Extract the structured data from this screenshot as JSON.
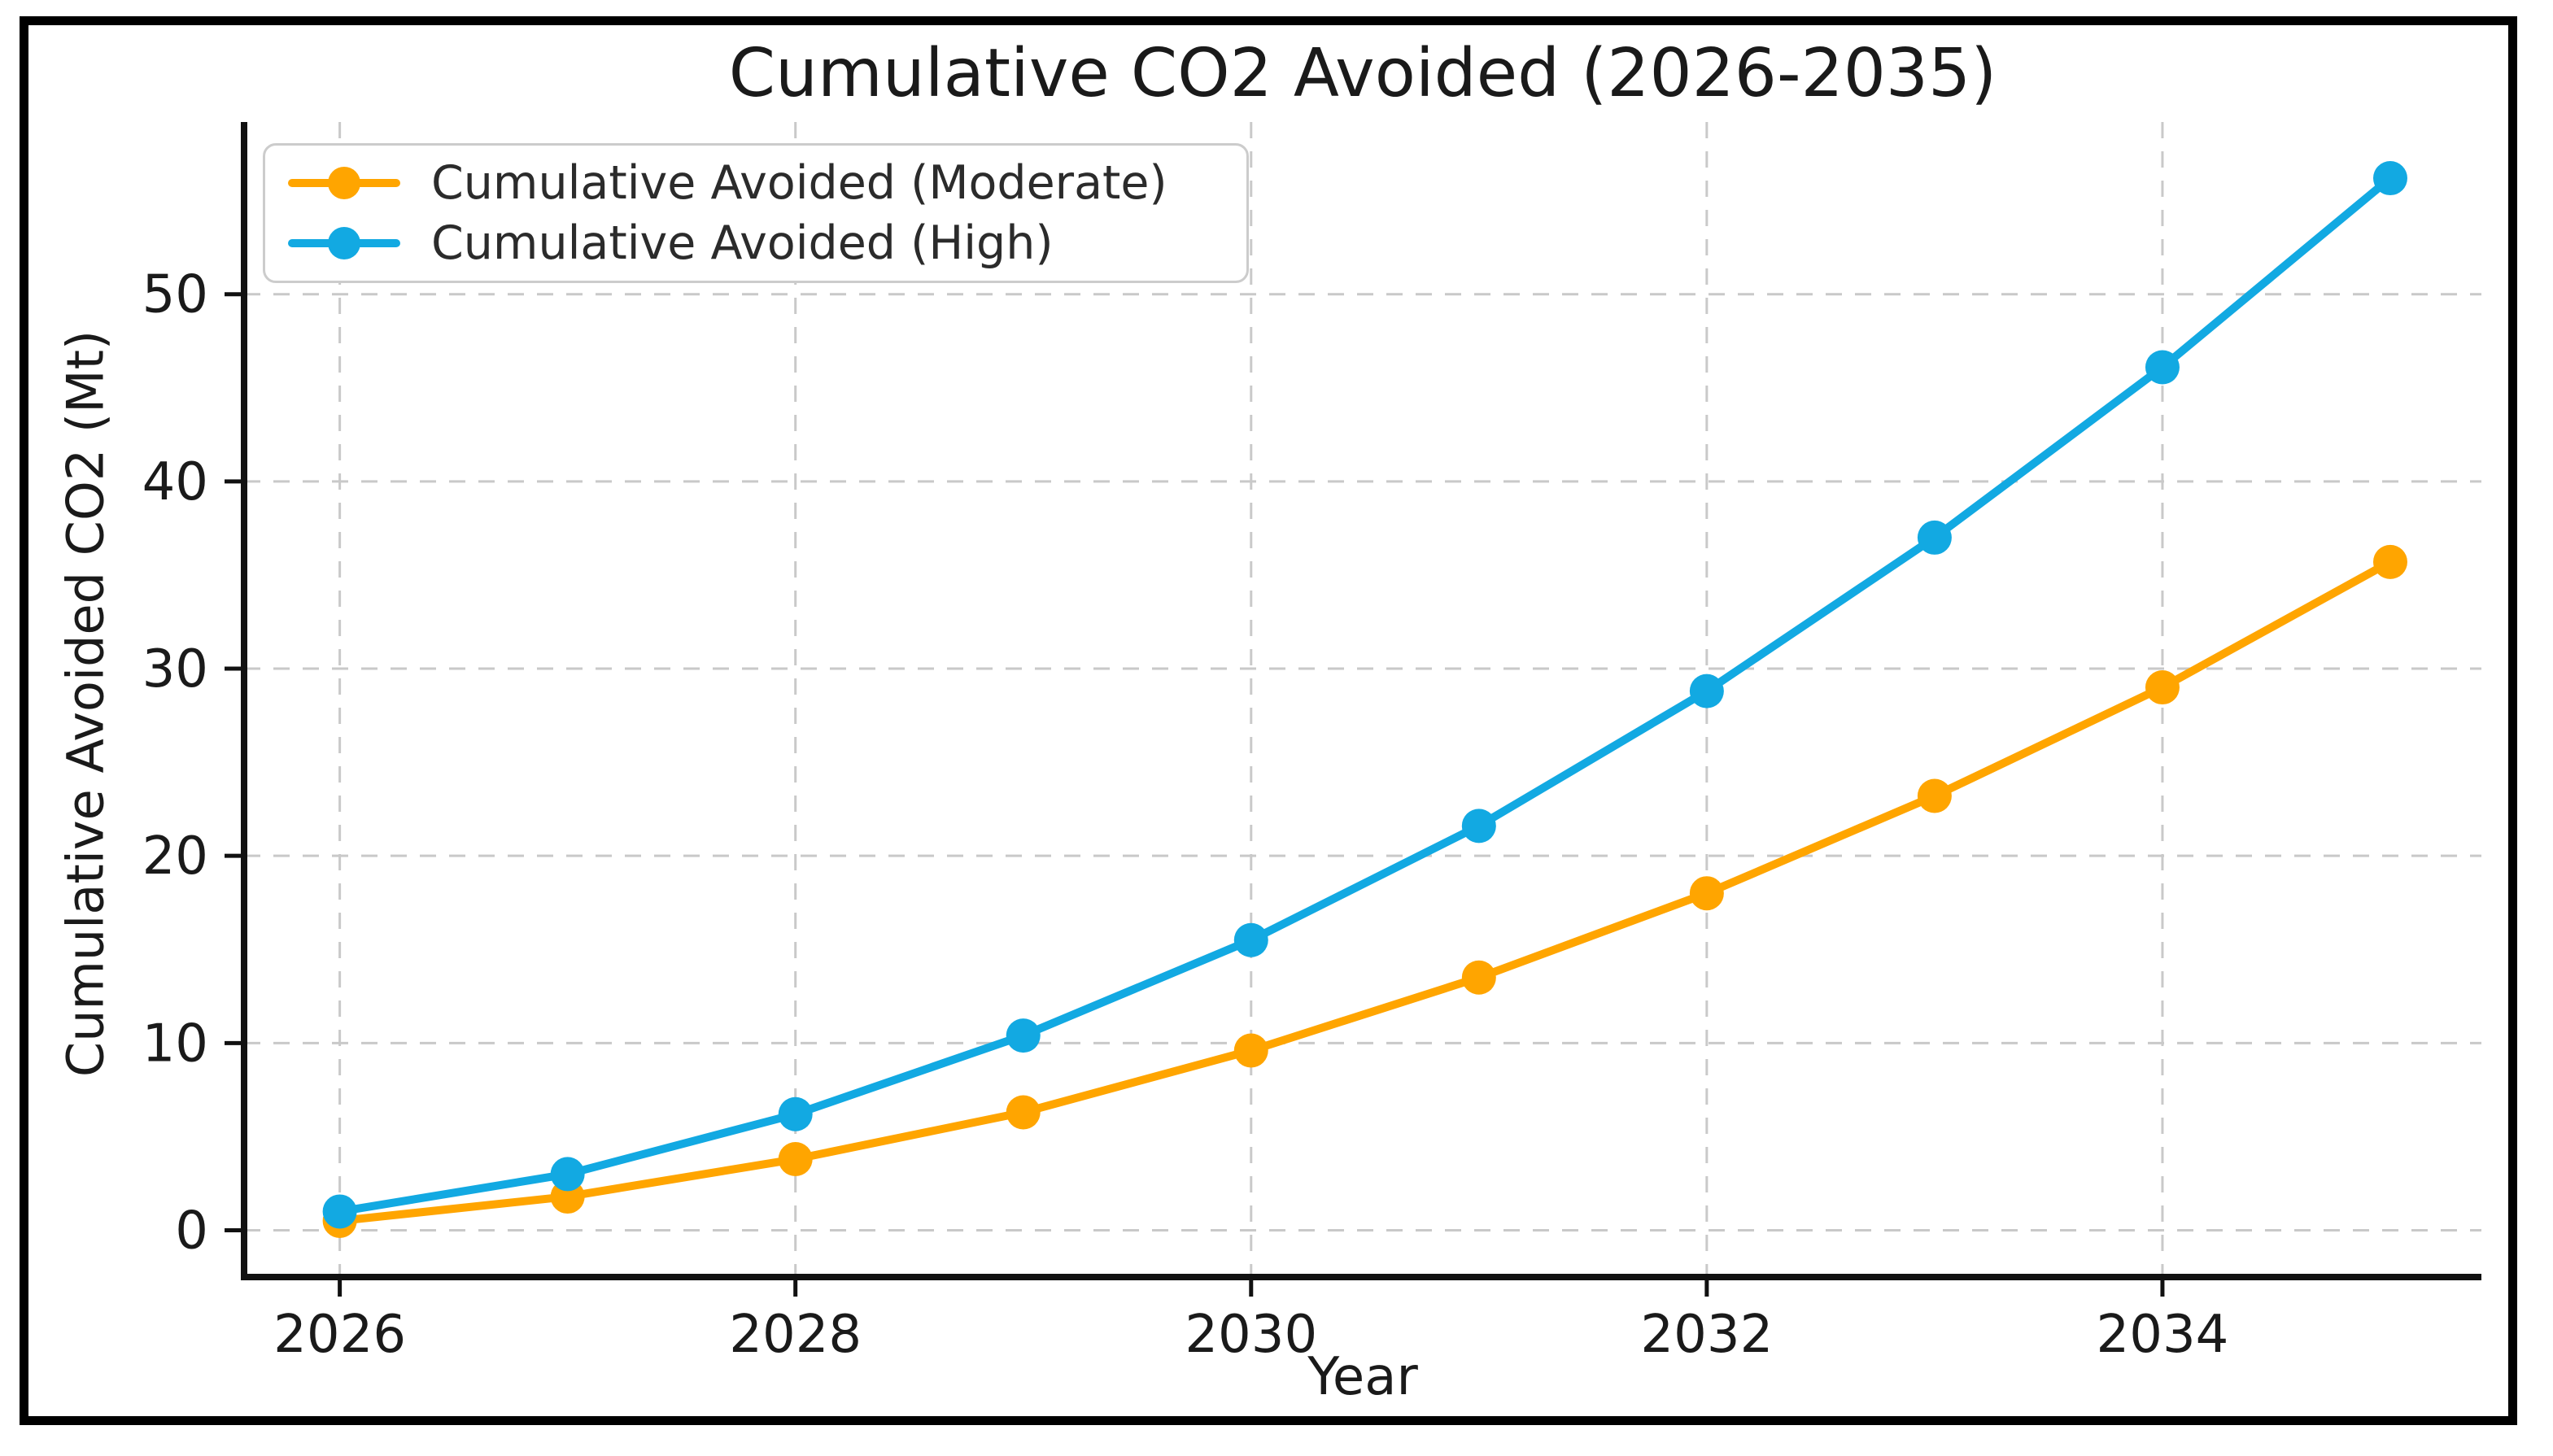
{
  "chart_data": {
    "type": "line",
    "title": "Cumulative CO2 Avoided (2026-2035)",
    "xlabel": "Year",
    "ylabel": "Cumulative Avoided CO2 (Mt)",
    "x": [
      2026,
      2027,
      2028,
      2029,
      2030,
      2031,
      2032,
      2033,
      2034,
      2035
    ],
    "series": [
      {
        "name": "Cumulative Avoided (Moderate)",
        "color": "#FFA500",
        "values": [
          0.5,
          1.8,
          3.8,
          6.3,
          9.6,
          13.5,
          18.0,
          23.2,
          29.0,
          35.7
        ]
      },
      {
        "name": "Cumulative Avoided (High)",
        "color": "#12A9E2",
        "values": [
          1.0,
          3.0,
          6.2,
          10.4,
          15.5,
          21.6,
          28.8,
          37.0,
          46.1,
          56.2
        ]
      }
    ],
    "x_ticks": [
      2026,
      2028,
      2030,
      2032,
      2034
    ],
    "y_ticks": [
      0,
      10,
      20,
      30,
      40,
      50
    ],
    "xlim": [
      2025.58,
      2035.4
    ],
    "ylim": [
      -2.5,
      59.2
    ],
    "grid": true,
    "grid_style": "dashed",
    "legend_position": "upper left",
    "marker": "circle"
  },
  "colors": {
    "grid": "#c9c9c9",
    "spine": "#111111",
    "tick_text": "#1a1a1a",
    "background": "#ffffff",
    "legend_border": "#cccccc",
    "outer_frame": "#000000"
  }
}
